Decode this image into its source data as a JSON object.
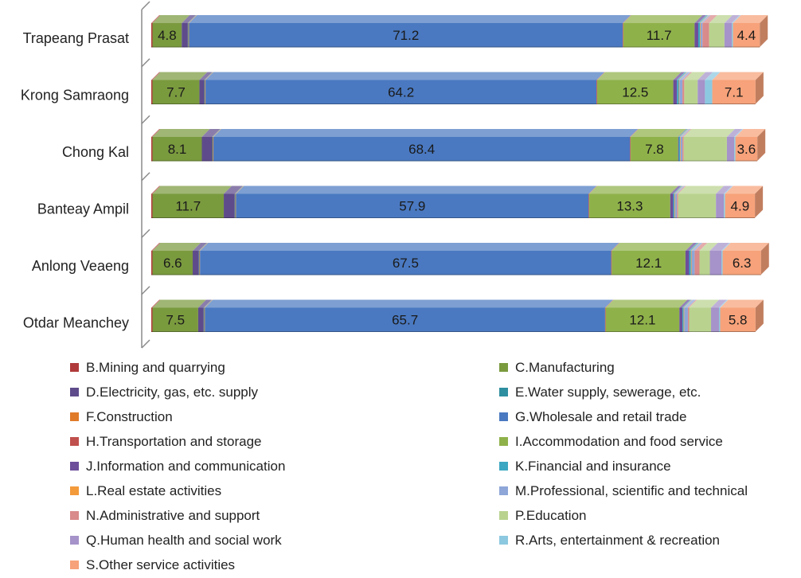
{
  "chart_data": {
    "type": "bar",
    "orientation": "horizontal",
    "stacked": true,
    "percent_stacked": true,
    "title": "",
    "xlabel": "",
    "ylabel": "",
    "xlim": [
      0,
      100
    ],
    "grid": false,
    "legend_position": "bottom",
    "categories": [
      "Trapeang Prasat",
      "Krong Samraong",
      "Chong Kal",
      "Banteay Ampil",
      "Anlong Veaeng",
      "Otdar Meanchey"
    ],
    "series": [
      {
        "name": "B.Mining and quarrying",
        "color": "#b03a3a",
        "values": [
          0.2,
          0.2,
          0.2,
          0.2,
          0.2,
          0.2
        ],
        "labels": [
          "",
          "",
          "",
          "",
          "",
          ""
        ]
      },
      {
        "name": "C.Manufacturing",
        "color": "#7a9a3e",
        "values": [
          4.8,
          7.7,
          8.1,
          11.7,
          6.6,
          7.5
        ],
        "labels": [
          "4.8",
          "7.7",
          "8.1",
          "11.7",
          "6.6",
          "7.5"
        ]
      },
      {
        "name": "D.Electricity, gas, etc. supply",
        "color": "#5e4b8b",
        "values": [
          1.0,
          0.8,
          1.7,
          1.8,
          1.0,
          0.9
        ],
        "labels": [
          "",
          "",
          "",
          "",
          "",
          ""
        ]
      },
      {
        "name": "E.Water supply, sewerage, etc.",
        "color": "#2e8fa0",
        "values": [
          0.1,
          0.1,
          0.1,
          0.1,
          0.1,
          0.1
        ],
        "labels": [
          "",
          "",
          "",
          "",
          "",
          ""
        ]
      },
      {
        "name": "F.Construction",
        "color": "#e07b2a",
        "values": [
          0.1,
          0.1,
          0.1,
          0.1,
          0.1,
          0.1
        ],
        "labels": [
          "",
          "",
          "",
          "",
          "",
          ""
        ]
      },
      {
        "name": "G.Wholesale and retail trade",
        "color": "#4a79c1",
        "values": [
          71.2,
          64.2,
          68.4,
          57.9,
          67.5,
          65.7
        ],
        "labels": [
          "71.2",
          "64.2",
          "68.4",
          "57.9",
          "67.5",
          "65.7"
        ]
      },
      {
        "name": "H.Transportation and storage",
        "color": "#c0504d",
        "values": [
          0.1,
          0.1,
          0.1,
          0.1,
          0.1,
          0.1
        ],
        "labels": [
          "",
          "",
          "",
          "",
          "",
          ""
        ]
      },
      {
        "name": "I.Accommodation and food service",
        "color": "#8fb14a",
        "values": [
          11.7,
          12.5,
          7.8,
          13.3,
          12.1,
          12.1
        ],
        "labels": [
          "11.7",
          "12.5",
          "7.8",
          "13.3",
          "12.1",
          "12.1"
        ]
      },
      {
        "name": "J.Information and communication",
        "color": "#6c4e9a",
        "values": [
          0.6,
          0.6,
          0.1,
          0.5,
          0.6,
          0.5
        ],
        "labels": [
          "",
          "",
          "",
          "",
          "",
          ""
        ]
      },
      {
        "name": "K.Financial and insurance",
        "color": "#3ba7c2",
        "values": [
          0.3,
          0.3,
          0.2,
          0.2,
          0.3,
          0.2
        ],
        "labels": [
          "",
          "",
          "",
          "",
          "",
          ""
        ]
      },
      {
        "name": "L.Real estate activities",
        "color": "#f39a3b",
        "values": [
          0.1,
          0.1,
          0.1,
          0.1,
          0.1,
          0.1
        ],
        "labels": [
          "",
          "",
          "",
          "",
          "",
          ""
        ]
      },
      {
        "name": "M.Professional, scientific and technical",
        "color": "#8ea6d8",
        "values": [
          0.3,
          0.5,
          0.3,
          0.3,
          0.5,
          0.6
        ],
        "labels": [
          "",
          "",
          "",
          "",
          "",
          ""
        ]
      },
      {
        "name": "N.Administrative and support",
        "color": "#d98a8a",
        "values": [
          1.1,
          0.3,
          0.2,
          0.2,
          0.8,
          0.2
        ],
        "labels": [
          "",
          "",
          "",
          "",
          "",
          ""
        ]
      },
      {
        "name": "P.Education",
        "color": "#b9d38f",
        "values": [
          2.5,
          2.2,
          7.1,
          6.2,
          1.7,
          3.6
        ],
        "labels": [
          "",
          "",
          "",
          "",
          "",
          ""
        ]
      },
      {
        "name": "Q.Human health and social work",
        "color": "#a593c9",
        "values": [
          1.2,
          1.2,
          1.2,
          1.3,
          1.9,
          1.3
        ],
        "labels": [
          "",
          "",
          "",
          "",
          "",
          ""
        ]
      },
      {
        "name": "R.Arts, entertainment & recreation",
        "color": "#8cc8e0",
        "values": [
          0.2,
          1.2,
          0.2,
          0.2,
          0.2,
          0.2
        ],
        "labels": [
          "",
          "",
          "",
          "",
          "",
          ""
        ]
      },
      {
        "name": "S.Other service activities",
        "color": "#f7a27a",
        "values": [
          4.4,
          7.1,
          3.6,
          4.9,
          6.3,
          5.8
        ],
        "labels": [
          "4.4",
          "7.1",
          "3.6",
          "4.9",
          "6.3",
          "5.8"
        ]
      }
    ]
  }
}
